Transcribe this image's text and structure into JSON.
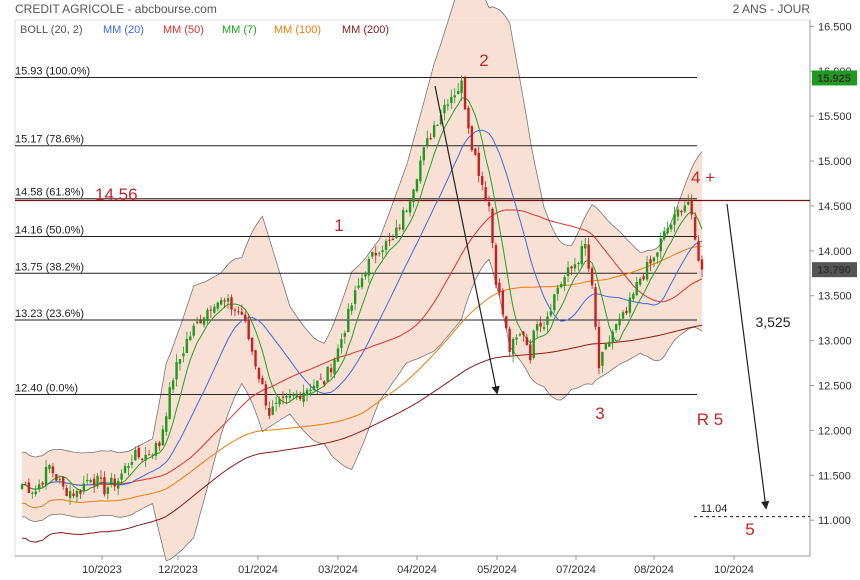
{
  "header": {
    "title": "CREDIT AGRICOLE - abcbourse.com",
    "period": "2 ANS - JOUR"
  },
  "legend": [
    {
      "label": "BOLL (20, 2)",
      "color": "#555555"
    },
    {
      "label": "MM (20)",
      "color": "#4169e1"
    },
    {
      "label": "MM (50)",
      "color": "#e03030"
    },
    {
      "label": "MM (7)",
      "color": "#22a022"
    },
    {
      "label": "MM (100)",
      "color": "#f07a10"
    },
    {
      "label": "MM (200)",
      "color": "#8b1a1a"
    }
  ],
  "price_badges": {
    "high": {
      "value": "15.925",
      "color": "#1e9a1e"
    },
    "last": {
      "value": "13.790",
      "color": "#555555"
    }
  },
  "annotations": [
    {
      "text": "14.56",
      "kind": "big"
    },
    {
      "text": "1",
      "kind": "big"
    },
    {
      "text": "2",
      "kind": "big"
    },
    {
      "text": "3",
      "kind": "big"
    },
    {
      "text": "4 +",
      "kind": "big"
    },
    {
      "text": "R 5",
      "kind": "big"
    },
    {
      "text": "5",
      "kind": "big"
    },
    {
      "text": "3,525",
      "kind": "normal"
    },
    {
      "text": "11.04",
      "kind": "small"
    }
  ],
  "chart_data": {
    "type": "candlestick",
    "title": "CREDIT AGRICOLE - abcbourse.com",
    "timeframe": "2 ANS - JOUR",
    "x_ticks": [
      "10/2023",
      "12/2023",
      "01/2024",
      "03/2024",
      "04/2024",
      "05/2024",
      "07/2024",
      "08/2024",
      "10/2024"
    ],
    "y_ticks": [
      "11.000",
      "11.500",
      "12.000",
      "12.500",
      "13.000",
      "13.500",
      "14.000",
      "14.500",
      "15.000",
      "15.500",
      "16.000",
      "16.500"
    ],
    "ylim": [
      10.55,
      16.65
    ],
    "last_price": 13.79,
    "high_badge": 15.925,
    "fibonacci_levels": [
      {
        "label": "15.93  (100.0%)",
        "value": 15.93
      },
      {
        "label": "15.17  (78.6%)",
        "value": 15.17
      },
      {
        "label": "14.58  (61.8%)",
        "value": 14.58
      },
      {
        "label": "14.16  (50.0%)",
        "value": 14.16
      },
      {
        "label": "13.75  (38.2%)",
        "value": 13.75
      },
      {
        "label": "13.23  (23.6%)",
        "value": 13.23
      },
      {
        "label": "12.40  (0.0%)",
        "value": 12.4
      }
    ],
    "resistance_level": 14.56,
    "target_level": 11.04,
    "projected_move": "3,525",
    "waves": [
      "1",
      "2",
      "3",
      "4 +",
      "5"
    ],
    "series": [
      {
        "name": "BOLL (20, 2)",
        "kind": "band",
        "color": "#555555"
      },
      {
        "name": "MM (20)",
        "kind": "ma",
        "color": "#4169e1"
      },
      {
        "name": "MM (50)",
        "kind": "ma",
        "color": "#e03030"
      },
      {
        "name": "MM (7)",
        "kind": "ma",
        "color": "#22a022"
      },
      {
        "name": "MM (100)",
        "kind": "ma",
        "color": "#f07a10"
      },
      {
        "name": "MM (200)",
        "kind": "ma",
        "color": "#8b1a1a"
      }
    ],
    "path_close": [
      [
        0,
        11.4
      ],
      [
        4,
        11.33
      ],
      [
        8,
        11.6
      ],
      [
        12,
        11.35
      ],
      [
        16,
        11.3
      ],
      [
        20,
        11.5
      ],
      [
        24,
        11.35
      ],
      [
        28,
        11.45
      ],
      [
        32,
        11.7
      ],
      [
        36,
        11.72
      ],
      [
        40,
        11.85
      ],
      [
        44,
        12.6
      ],
      [
        48,
        13.0
      ],
      [
        52,
        13.25
      ],
      [
        56,
        13.45
      ],
      [
        60,
        13.4
      ],
      [
        64,
        13.3
      ],
      [
        68,
        12.75
      ],
      [
        72,
        12.2
      ],
      [
        76,
        12.3
      ],
      [
        80,
        12.4
      ],
      [
        84,
        12.5
      ],
      [
        88,
        12.55
      ],
      [
        92,
        12.9
      ],
      [
        96,
        13.4
      ],
      [
        100,
        13.8
      ],
      [
        104,
        14.05
      ],
      [
        108,
        14.1
      ],
      [
        112,
        14.5
      ],
      [
        116,
        15.0
      ],
      [
        120,
        15.4
      ],
      [
        124,
        15.7
      ],
      [
        128,
        15.85
      ],
      [
        131,
        15.2
      ],
      [
        134,
        14.75
      ],
      [
        136,
        14.5
      ],
      [
        138,
        13.7
      ],
      [
        140,
        13.3
      ],
      [
        142,
        12.9
      ],
      [
        144,
        13.0
      ],
      [
        146,
        13.1
      ],
      [
        148,
        12.85
      ],
      [
        150,
        13.25
      ],
      [
        152,
        13.2
      ],
      [
        156,
        13.6
      ],
      [
        160,
        13.8
      ],
      [
        164,
        14.05
      ],
      [
        166,
        13.55
      ],
      [
        168,
        12.7
      ],
      [
        170,
        12.9
      ],
      [
        172,
        13.1
      ],
      [
        176,
        13.3
      ],
      [
        180,
        13.7
      ],
      [
        184,
        13.9
      ],
      [
        186,
        14.1
      ],
      [
        188,
        14.25
      ],
      [
        190,
        14.35
      ],
      [
        192,
        14.5
      ],
      [
        194,
        14.55
      ],
      [
        196,
        14.1
      ],
      [
        198,
        13.79
      ]
    ],
    "path_sd": [
      [
        0,
        0.18
      ],
      [
        30,
        0.18
      ],
      [
        38,
        0.18
      ],
      [
        42,
        0.55
      ],
      [
        50,
        0.7
      ],
      [
        58,
        0.45
      ],
      [
        64,
        0.35
      ],
      [
        70,
        0.6
      ],
      [
        78,
        0.3
      ],
      [
        88,
        0.28
      ],
      [
        96,
        0.55
      ],
      [
        104,
        0.45
      ],
      [
        112,
        0.55
      ],
      [
        120,
        0.8
      ],
      [
        128,
        0.95
      ],
      [
        136,
        0.7
      ],
      [
        142,
        0.9
      ],
      [
        152,
        0.5
      ],
      [
        160,
        0.4
      ],
      [
        166,
        0.5
      ],
      [
        172,
        0.4
      ],
      [
        180,
        0.28
      ],
      [
        190,
        0.35
      ],
      [
        198,
        0.5
      ]
    ]
  }
}
